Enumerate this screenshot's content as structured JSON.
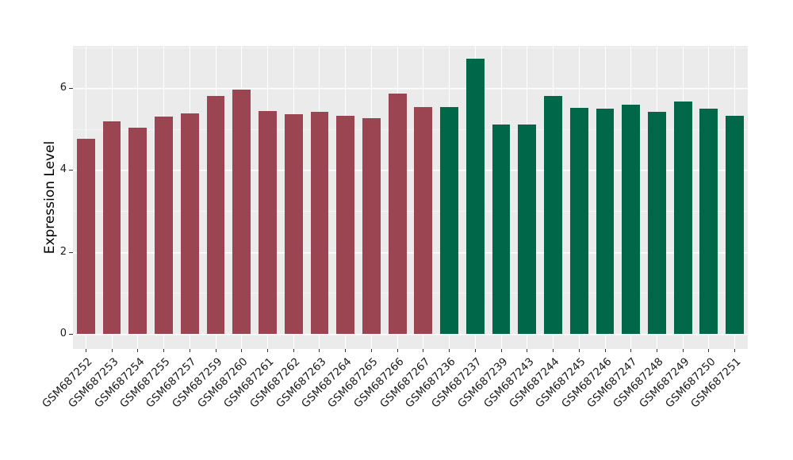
{
  "chart_data": {
    "type": "bar",
    "title": "",
    "xlabel": "",
    "ylabel": "Expression Level",
    "categories": [
      "GSM687252",
      "GSM687253",
      "GSM687254",
      "GSM687255",
      "GSM687257",
      "GSM687259",
      "GSM687260",
      "GSM687261",
      "GSM687262",
      "GSM687263",
      "GSM687264",
      "GSM687265",
      "GSM687266",
      "GSM687267",
      "GSM687236",
      "GSM687237",
      "GSM687239",
      "GSM687243",
      "GSM687244",
      "GSM687245",
      "GSM687246",
      "GSM687247",
      "GSM687248",
      "GSM687249",
      "GSM687250",
      "GSM687251"
    ],
    "values": [
      4.76,
      5.19,
      5.04,
      5.3,
      5.38,
      5.81,
      5.96,
      5.45,
      5.36,
      5.43,
      5.33,
      5.26,
      5.86,
      5.54,
      5.54,
      6.73,
      5.12,
      5.12,
      5.82,
      5.52,
      5.51,
      5.59,
      5.43,
      5.68,
      5.51,
      5.33
    ],
    "groups": [
      "group1",
      "group1",
      "group1",
      "group1",
      "group1",
      "group1",
      "group1",
      "group1",
      "group1",
      "group1",
      "group1",
      "group1",
      "group1",
      "group1",
      "group2",
      "group2",
      "group2",
      "group2",
      "group2",
      "group2",
      "group2",
      "group2",
      "group2",
      "group2",
      "group2",
      "group2"
    ],
    "group_colors": {
      "group1": "#9B4452",
      "group2": "#006749"
    },
    "yticks": [
      0,
      2,
      4,
      6
    ],
    "ytick_labels": [
      "0",
      "2",
      "4",
      "6"
    ],
    "yticks_minor": [
      1,
      3,
      5,
      7
    ],
    "ylim": [
      -0.37,
      7.03
    ],
    "grid": true,
    "legend": false,
    "panel_background": "#EBEBEB",
    "grid_major_color": "#FFFFFF",
    "grid_minor_color": "#F5F5F5",
    "background": "#FFFFFF",
    "bar_width_fraction": 0.7
  }
}
